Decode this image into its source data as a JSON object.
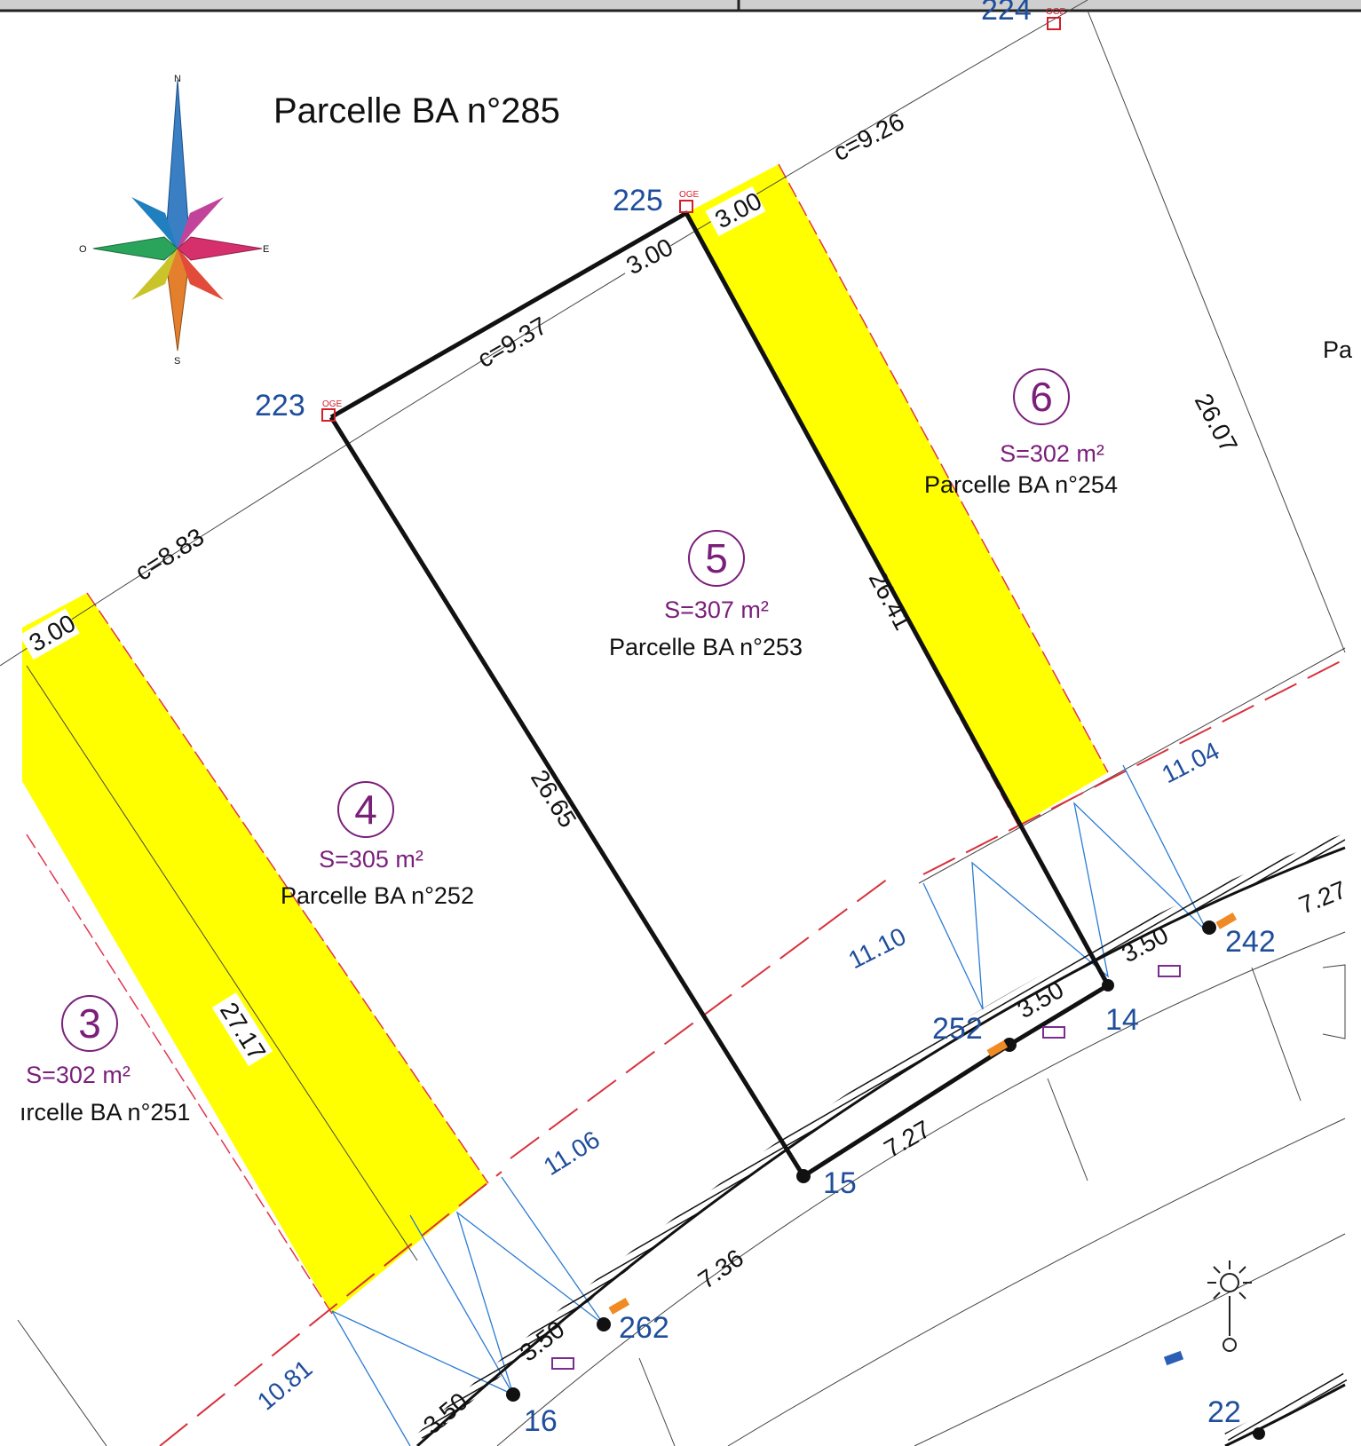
{
  "title": "Parcelle BA n°285",
  "compass": {
    "n": "N",
    "s": "S",
    "e": "E",
    "w": "O"
  },
  "marker": "OGE",
  "points": {
    "p223": "223",
    "p224": "224",
    "p225": "225",
    "p14": "14",
    "p15": "15",
    "p16": "16",
    "p22": "22",
    "p242": "242",
    "p252": "252",
    "p262": "262"
  },
  "lots": {
    "lot3": {
      "num": "3",
      "area": "S=302 m²",
      "name": "ırcelle BA n°251"
    },
    "lot4": {
      "num": "4",
      "area": "S=305 m²",
      "name": "Parcelle BA n°252"
    },
    "lot5": {
      "num": "5",
      "area": "S=307 m²",
      "name": "Parcelle BA n°253"
    },
    "lot6": {
      "num": "6",
      "area": "S=302 m²",
      "name": "Parcelle BA n°254"
    }
  },
  "edge_label": "Pa",
  "dims": {
    "c926": "c=9.26",
    "c937": "c=9.37",
    "c883": "c=8.83",
    "w300a": "3.00",
    "w300b": "3.00",
    "w300c": "3.00",
    "d2607": "26.07",
    "d2641": "26.41",
    "d2665": "26.65",
    "d2717": "27.17",
    "d1104": "11.04",
    "d1110": "11.10",
    "d1106": "11.06",
    "d1081": "10.81",
    "s350a": "3.50",
    "s350b": "3.50",
    "s350c": "3.50",
    "s350d": "3.50",
    "s727a": "7.27",
    "s727b": "7.27",
    "s736": "7.36"
  }
}
